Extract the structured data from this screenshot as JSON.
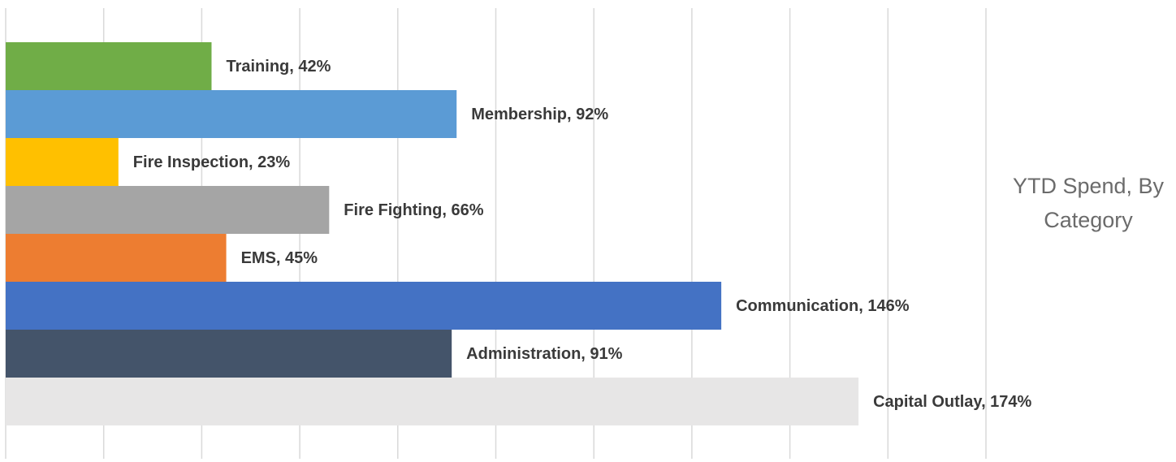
{
  "chart_data": {
    "type": "hbar",
    "title": "YTD Spend, By Category",
    "categories": [
      "Training",
      "Membership",
      "Fire Inspection",
      "Fire Fighting",
      "EMS",
      "Communication",
      "Administration",
      "Capital Outlay"
    ],
    "values": [
      42,
      92,
      23,
      66,
      45,
      146,
      91,
      174
    ],
    "value_labels": [
      "Training, 42%",
      "Membership, 92%",
      "Fire Inspection, 23%",
      "Fire Fighting, 66%",
      "EMS, 45%",
      "Communication, 146%",
      "Administration, 91%",
      "Capital Outlay, 174%"
    ],
    "colors": [
      "#70ad47",
      "#5b9bd5",
      "#ffc000",
      "#a5a5a5",
      "#ed7d31",
      "#4472c4",
      "#44546a",
      "#e7e6e6"
    ],
    "xlim": [
      0,
      200
    ],
    "xticks": [
      0,
      20,
      40,
      60,
      80,
      100,
      120,
      140,
      160,
      180,
      200
    ],
    "grid": true
  }
}
